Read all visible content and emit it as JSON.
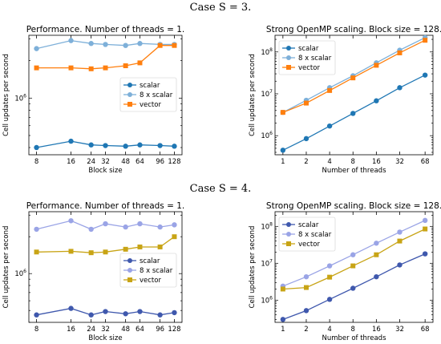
{
  "captions": {
    "case3": "Case S = 3.",
    "case4": "Case S = 4."
  },
  "colors": {
    "scalar": "#1f77b4",
    "scalar_case4": "#3f58ad",
    "x8scalar": "#7eb0d9",
    "x8scalar_case4": "#9aa4e6",
    "vector": "#ff7f0e",
    "vector_case4": "#c8a415"
  },
  "chart_data": [
    {
      "type": "line",
      "title": "Performance. Number of threads = 1.",
      "xlabel": "Block size",
      "ylabel": "Cell updates per second",
      "x": [
        8,
        16,
        24,
        32,
        48,
        64,
        96,
        128
      ],
      "xscale": "log2",
      "yscale": "log",
      "ylim": [
        350000,
        3200000
      ],
      "ytick_labels": [
        "10^6"
      ],
      "legend": "center-right",
      "series": [
        {
          "name": "scalar",
          "values": [
            400000,
            450000,
            420000,
            415000,
            410000,
            420000,
            415000,
            410000
          ]
        },
        {
          "name": "8 x scalar",
          "values": [
            2500000,
            2900000,
            2750000,
            2700000,
            2650000,
            2750000,
            2700000,
            2700000
          ]
        },
        {
          "name": "vector",
          "values": [
            1750000,
            1750000,
            1720000,
            1750000,
            1820000,
            1920000,
            2650000,
            2650000
          ]
        }
      ]
    },
    {
      "type": "line",
      "title": "Strong OpenMP scaling. Block size = 128.",
      "xlabel": "Number of threads",
      "ylabel": "Cell updates per second",
      "x": [
        1,
        2,
        4,
        8,
        16,
        32,
        68
      ],
      "xscale": "log2",
      "yscale": "log",
      "ylim": [
        350000,
        250000000
      ],
      "ytick_labels": [
        "10^6",
        "10^7",
        "10^8"
      ],
      "legend": "top-left",
      "series": [
        {
          "name": "scalar",
          "values": [
            450000,
            850000,
            1700000,
            3400000,
            6800000,
            14000000,
            28000000
          ]
        },
        {
          "name": "8 x scalar",
          "values": [
            3600000,
            7000000,
            14000000,
            27000000,
            55000000,
            110000000,
            220000000
          ]
        },
        {
          "name": "vector",
          "values": [
            3600000,
            6000000,
            12000000,
            24000000,
            48000000,
            95000000,
            190000000
          ]
        }
      ]
    },
    {
      "type": "line",
      "title": "Performance. Number of threads = 1.",
      "xlabel": "Block size",
      "ylabel": "Cell updates per second",
      "x": [
        8,
        16,
        24,
        32,
        48,
        64,
        96,
        128
      ],
      "xscale": "log2",
      "yscale": "log",
      "ylim": [
        400000,
        3200000
      ],
      "ytick_labels": [
        "10^6"
      ],
      "legend": "center-right",
      "series": [
        {
          "name": "scalar",
          "values": [
            460000,
            520000,
            460000,
            490000,
            470000,
            490000,
            460000,
            480000
          ]
        },
        {
          "name": "8 x scalar",
          "values": [
            2300000,
            2700000,
            2300000,
            2550000,
            2400000,
            2550000,
            2400000,
            2500000
          ]
        },
        {
          "name": "vector",
          "values": [
            1500000,
            1520000,
            1480000,
            1500000,
            1580000,
            1650000,
            1650000,
            2000000
          ]
        }
      ]
    },
    {
      "type": "line",
      "title": "Strong OpenMP scaling. Block size = 128.",
      "xlabel": "Number of threads",
      "ylabel": "Cell updates per second",
      "x": [
        1,
        2,
        4,
        8,
        16,
        32,
        68
      ],
      "xscale": "log2",
      "yscale": "log",
      "ylim": [
        250000,
        250000000
      ],
      "ytick_labels": [
        "10^6",
        "10^7",
        "10^8"
      ],
      "legend": "top-left",
      "series": [
        {
          "name": "scalar",
          "values": [
            300000,
            520000,
            1050000,
            2100000,
            4300000,
            9000000,
            18000000
          ]
        },
        {
          "name": "8 x scalar",
          "values": [
            2400000,
            4300000,
            8500000,
            17000000,
            35000000,
            70000000,
            145000000
          ]
        },
        {
          "name": "vector",
          "values": [
            2000000,
            2200000,
            4200000,
            8500000,
            17000000,
            40000000,
            85000000
          ]
        }
      ]
    }
  ]
}
